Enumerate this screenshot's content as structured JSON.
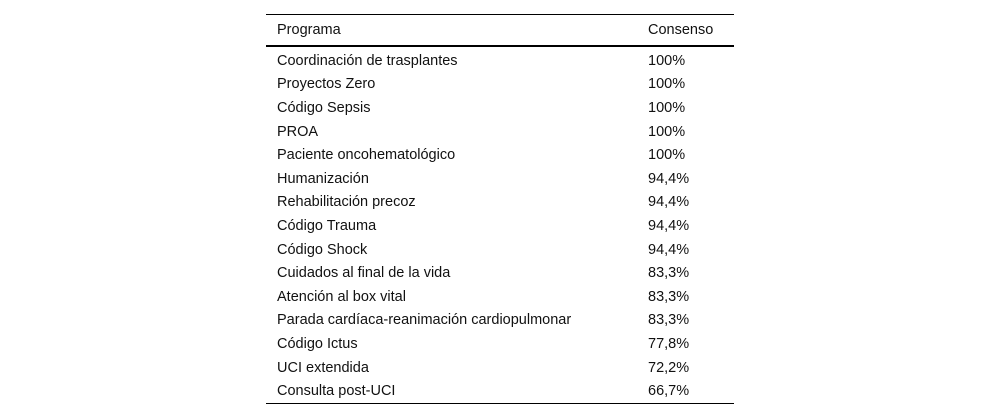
{
  "table": {
    "header": {
      "program_label": "Programa",
      "consensus_label": "Consenso"
    },
    "rows": [
      {
        "program": "Coordinación de trasplantes",
        "consensus": "100%"
      },
      {
        "program": "Proyectos Zero",
        "consensus": "100%"
      },
      {
        "program": "Código Sepsis",
        "consensus": "100%"
      },
      {
        "program": "PROA",
        "consensus": "100%"
      },
      {
        "program": "Paciente oncohematológico",
        "consensus": "100%"
      },
      {
        "program": "Humanización",
        "consensus": "94,4%"
      },
      {
        "program": "Rehabilitación precoz",
        "consensus": "94,4%"
      },
      {
        "program": "Código Trauma",
        "consensus": "94,4%"
      },
      {
        "program": "Código Shock",
        "consensus": "94,4%"
      },
      {
        "program": "Cuidados al final de la vida",
        "consensus": "83,3%"
      },
      {
        "program": "Atención al box vital",
        "consensus": "83,3%"
      },
      {
        "program": "Parada cardíaca-reanimación cardiopulmonar",
        "consensus": "83,3%"
      },
      {
        "program": "Código Ictus",
        "consensus": "77,8%"
      },
      {
        "program": "UCI extendida",
        "consensus": "72,2%"
      },
      {
        "program": "Consulta post-UCI",
        "consensus": "66,7%"
      }
    ],
    "colors": {
      "rule": "#000000",
      "text": "#111111",
      "background": "#ffffff"
    }
  }
}
